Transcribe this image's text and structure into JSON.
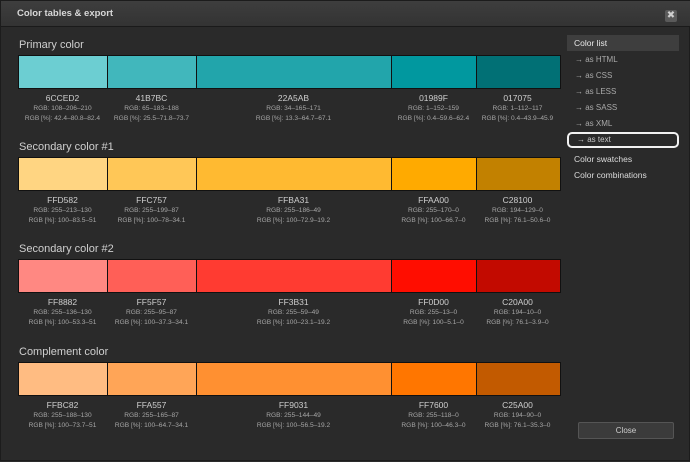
{
  "window": {
    "title": "Color tables & export",
    "close_glyph": "✖"
  },
  "sidebar": {
    "color_list": "Color list",
    "exports": [
      "→  as HTML",
      "→  as CSS",
      "→  as LESS",
      "→  as SASS",
      "→  as XML",
      "→  as text"
    ],
    "color_swatches": "Color swatches",
    "color_combinations": "Color combinations"
  },
  "footer": {
    "close_label": "Close"
  },
  "groups": [
    {
      "title": "Primary color",
      "colors": [
        {
          "hex": "6CCED2",
          "color": "#6CCED2",
          "rgb": "RGB: 108–206–210",
          "pct": "RGB [%]: 42.4–80.8–82.4"
        },
        {
          "hex": "41B7BC",
          "color": "#41B7BC",
          "rgb": "RGB: 65–183–188",
          "pct": "RGB [%]: 25.5–71.8–73.7"
        },
        {
          "hex": "22A5AB",
          "color": "#22A5AB",
          "rgb": "RGB: 34–165–171",
          "pct": "RGB [%]: 13.3–64.7–67.1"
        },
        {
          "hex": "01989F",
          "color": "#01989F",
          "rgb": "RGB: 1–152–159",
          "pct": "RGB [%]: 0.4–59.6–62.4"
        },
        {
          "hex": "017075",
          "color": "#017075",
          "rgb": "RGB: 1–112–117",
          "pct": "RGB [%]: 0.4–43.9–45.9"
        }
      ]
    },
    {
      "title": "Secondary color #1",
      "colors": [
        {
          "hex": "FFD582",
          "color": "#FFD582",
          "rgb": "RGB: 255–213–130",
          "pct": "RGB [%]: 100–83.5–51"
        },
        {
          "hex": "FFC757",
          "color": "#FFC757",
          "rgb": "RGB: 255–199–87",
          "pct": "RGB [%]: 100–78–34.1"
        },
        {
          "hex": "FFBA31",
          "color": "#FFBA31",
          "rgb": "RGB: 255–186–49",
          "pct": "RGB [%]: 100–72.9–19.2"
        },
        {
          "hex": "FFAA00",
          "color": "#FFAA00",
          "rgb": "RGB: 255–170–0",
          "pct": "RGB [%]: 100–66.7–0"
        },
        {
          "hex": "C28100",
          "color": "#C28100",
          "rgb": "RGB: 194–129–0",
          "pct": "RGB [%]: 76.1–50.6–0"
        }
      ]
    },
    {
      "title": "Secondary color #2",
      "colors": [
        {
          "hex": "FF8882",
          "color": "#FF8882",
          "rgb": "RGB: 255–136–130",
          "pct": "RGB [%]: 100–53.3–51"
        },
        {
          "hex": "FF5F57",
          "color": "#FF5F57",
          "rgb": "RGB: 255–95–87",
          "pct": "RGB [%]: 100–37.3–34.1"
        },
        {
          "hex": "FF3B31",
          "color": "#FF3B31",
          "rgb": "RGB: 255–59–49",
          "pct": "RGB [%]: 100–23.1–19.2"
        },
        {
          "hex": "FF0D00",
          "color": "#FF0D00",
          "rgb": "RGB: 255–13–0",
          "pct": "RGB [%]: 100–5.1–0"
        },
        {
          "hex": "C20A00",
          "color": "#C20A00",
          "rgb": "RGB: 194–10–0",
          "pct": "RGB [%]: 76.1–3.9–0"
        }
      ]
    },
    {
      "title": "Complement color",
      "colors": [
        {
          "hex": "FFBC82",
          "color": "#FFBC82",
          "rgb": "RGB: 255–188–130",
          "pct": "RGB [%]: 100–73.7–51"
        },
        {
          "hex": "FFA557",
          "color": "#FFA557",
          "rgb": "RGB: 255–165–87",
          "pct": "RGB [%]: 100–64.7–34.1"
        },
        {
          "hex": "FF9031",
          "color": "#FF9031",
          "rgb": "RGB: 255–144–49",
          "pct": "RGB [%]: 100–56.5–19.2"
        },
        {
          "hex": "FF7600",
          "color": "#FF7600",
          "rgb": "RGB: 255–118–0",
          "pct": "RGB [%]: 100–46.3–0"
        },
        {
          "hex": "C25A00",
          "color": "#C25A00",
          "rgb": "RGB: 194–90–0",
          "pct": "RGB [%]: 76.1–35.3–0"
        }
      ]
    }
  ]
}
